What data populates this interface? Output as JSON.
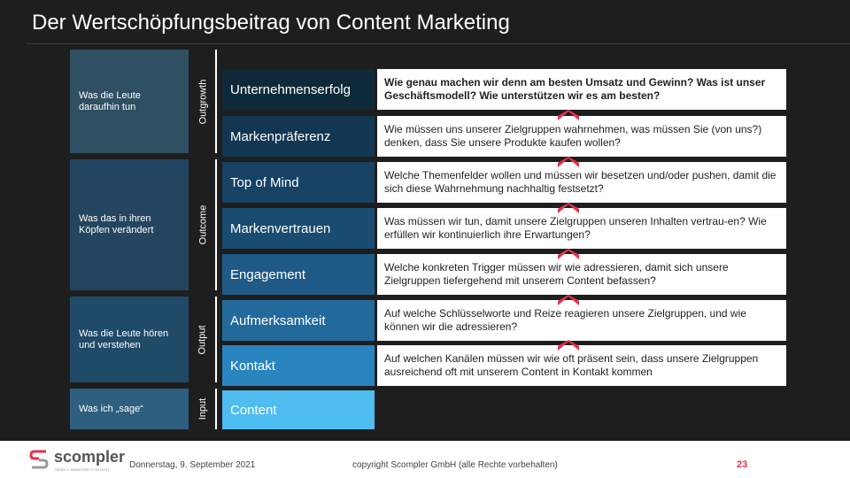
{
  "title": "Der Wertschöpfungsbeitrag von Content Marketing",
  "left_boxes": [
    {
      "text": "Was die Leute daraufhin tun",
      "color": "#2f4f63"
    },
    {
      "text": "Was das in ihren Köpfen verändert",
      "color": "#23455f"
    },
    {
      "text": "Was die Leute hören und verstehen",
      "color": "#1f4a68"
    },
    {
      "text": "Was ich „sage“",
      "color": "#2f5f7e"
    }
  ],
  "stages": [
    "Outgrowth",
    "Outcome",
    "Output",
    "Input"
  ],
  "rows": [
    {
      "label": "Unternehmenserfolg",
      "color": "#0e2a3a",
      "question": "Wie genau machen wir denn am besten Umsatz und Gewinn? Was ist unser Geschäftsmodell? Wie unterstützen wir es am besten?",
      "bold": true
    },
    {
      "label": "Markenpräferenz",
      "color": "#123752",
      "question": "Wie müssen uns unserer Zielgruppen wahrnehmen, was müssen Sie (von uns?) denken, dass Sie unsere Produkte kaufen wollen?",
      "bold": false
    },
    {
      "label": "Top of Mind",
      "color": "#164263",
      "question": "Welche Themenfelder wollen und müssen wir besetzen und/oder pushen, damit die sich diese Wahrnehmung nachhaltig festsetzt?",
      "bold": false
    },
    {
      "label": "Markenvertrauen",
      "color": "#1a4b70",
      "question": "Was müssen wir tun, damit unsere Zielgruppen unseren Inhalten vertrau-en? Wie erfüllen wir kontinuierlich ihre Erwartungen?",
      "bold": false
    },
    {
      "label": "Engagement",
      "color": "#1f5a86",
      "question": "Welche konkreten Trigger müssen wir wie adressieren, damit sich unsere Zielgruppen tiefergehend mit unserem Content befassen?",
      "bold": false
    },
    {
      "label": "Aufmerksamkeit",
      "color": "#236a9c",
      "question": "Auf welche Schlüsselworte und Reize reagieren unsere Zielgruppen, und wie können wir die adressieren?",
      "bold": false
    },
    {
      "label": "Kontakt",
      "color": "#2a84c0",
      "question": "Auf welchen Kanälen müssen wir wie oft präsent sein, dass unsere Zielgruppen ausreichend oft mit unserem Content in Kontakt kommen",
      "bold": false
    },
    {
      "label": "Content",
      "color": "#4fbdf0",
      "question": "",
      "bold": false
    }
  ],
  "arrow_color": "#e8304a",
  "footer": {
    "brand": "scompler",
    "tagline": "SIMPLY SMARTER CONTENT",
    "date": "Donnerstag, 9. September 2021",
    "copyright": "copyright Scompler GmbH (alle Rechte vorbehalten)",
    "page": "23",
    "accent": "#e8304a"
  }
}
